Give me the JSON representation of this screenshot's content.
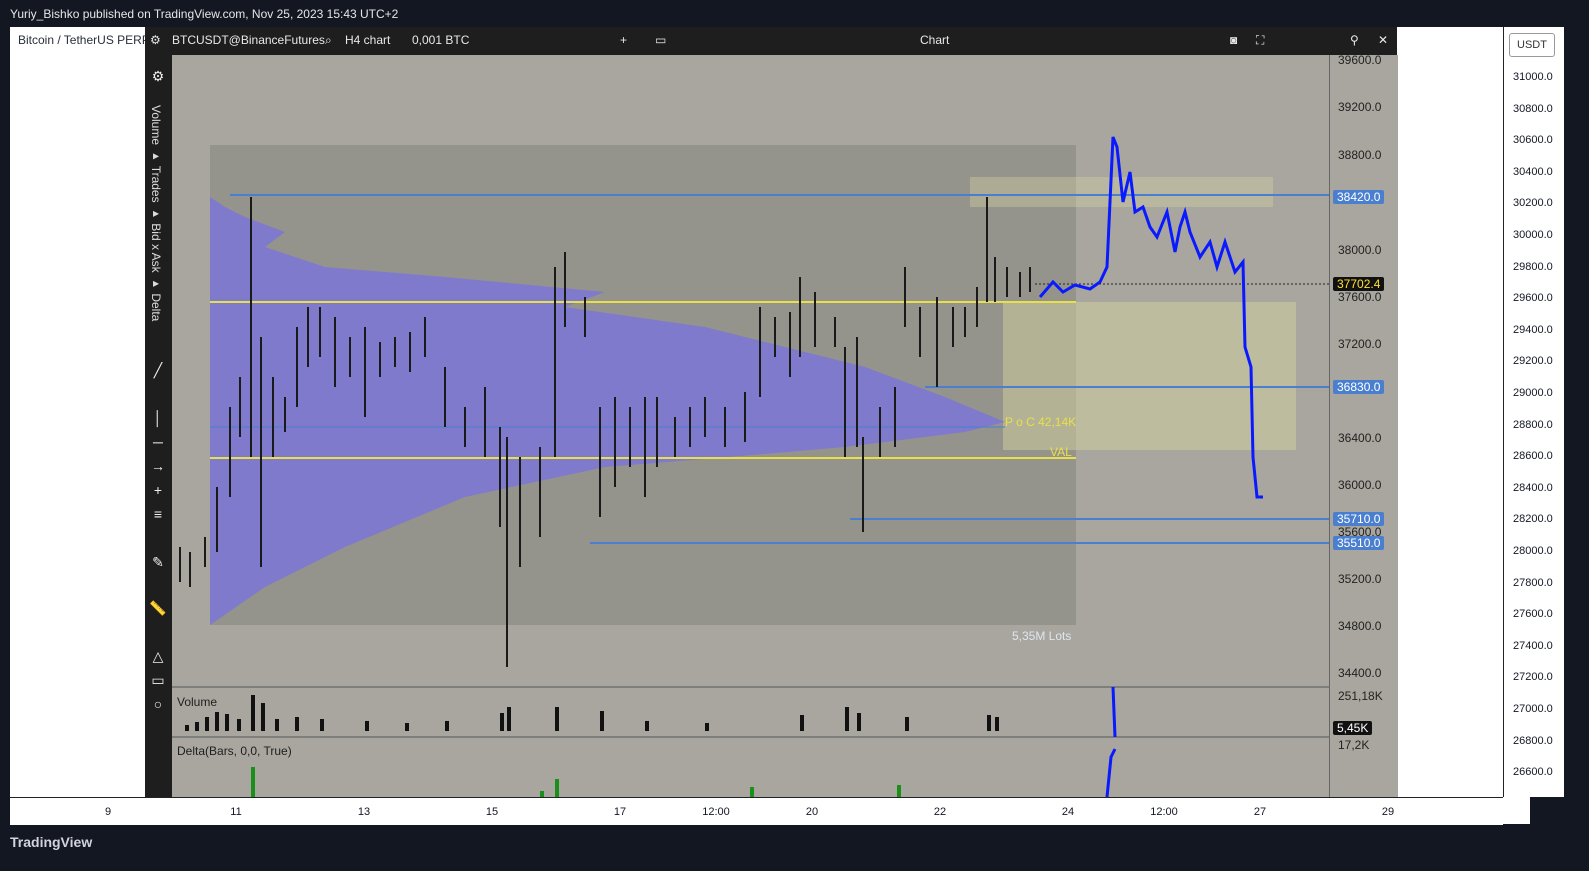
{
  "publisher": "Yuriy_Bishko published on TradingView.com, Nov 25, 2023 15:43 UTC+2",
  "tv_symbol_title": "Bitcoin / TetherUS PERP",
  "tv_logo": "TradingView",
  "right_scale": {
    "currency": "USDT",
    "ticks": [
      "31000.0",
      "30800.0",
      "30600.0",
      "30400.0",
      "30200.0",
      "30000.0",
      "29800.0",
      "29600.0",
      "29400.0",
      "29200.0",
      "29000.0",
      "28800.0",
      "28600.0",
      "28400.0",
      "28200.0",
      "28000.0",
      "27800.0",
      "27600.0",
      "27400.0",
      "27200.0",
      "27000.0",
      "26800.0",
      "26600.0"
    ]
  },
  "time_axis": [
    "9",
    "11",
    "13",
    "15",
    "17",
    "12:00",
    "20",
    "22",
    "24",
    "12:00",
    "27",
    "29"
  ],
  "popup": {
    "symbol": "BTCUSDT@BinanceFutures",
    "chart_type": "H4 chart",
    "lot": "0,001 BTC",
    "window_title": "Chart",
    "icons": [
      "settings-icon",
      "search-icon",
      "plus-icon",
      "window-icon",
      "pin-icon",
      "close-icon",
      "fullscreen-icon",
      "camera-icon"
    ],
    "left_toolbar_labels": [
      "Volume",
      "Trades",
      "Bid x Ask",
      "Delta"
    ],
    "price_ticks": [
      "39600.0",
      "39200.0",
      "38800.0",
      "38000.0",
      "37600.0",
      "37200.0",
      "36400.0",
      "36000.0",
      "35600.0",
      "35200.0",
      "34800.0",
      "34400.0"
    ],
    "price_badges": {
      "level_1": "38420.0",
      "level_2": "36830.0",
      "level_3": "35710.0",
      "level_4": "35510.0",
      "current": "37702.4"
    },
    "profile_labels": {
      "poc": "P o C 42,14K",
      "val": "VAL",
      "total": "5,35M  Lots"
    },
    "volume_panel": {
      "label": "Volume",
      "max": "251,18K",
      "current": "5,45K"
    },
    "delta_panel": {
      "label": "Delta(Bars, 0,0, True)",
      "max": "17,2K"
    },
    "colors": {
      "profile": "#7b75d6",
      "line": "#4a7fd0",
      "level": "#e8e04a",
      "drawing": "#0a1aff"
    }
  }
}
